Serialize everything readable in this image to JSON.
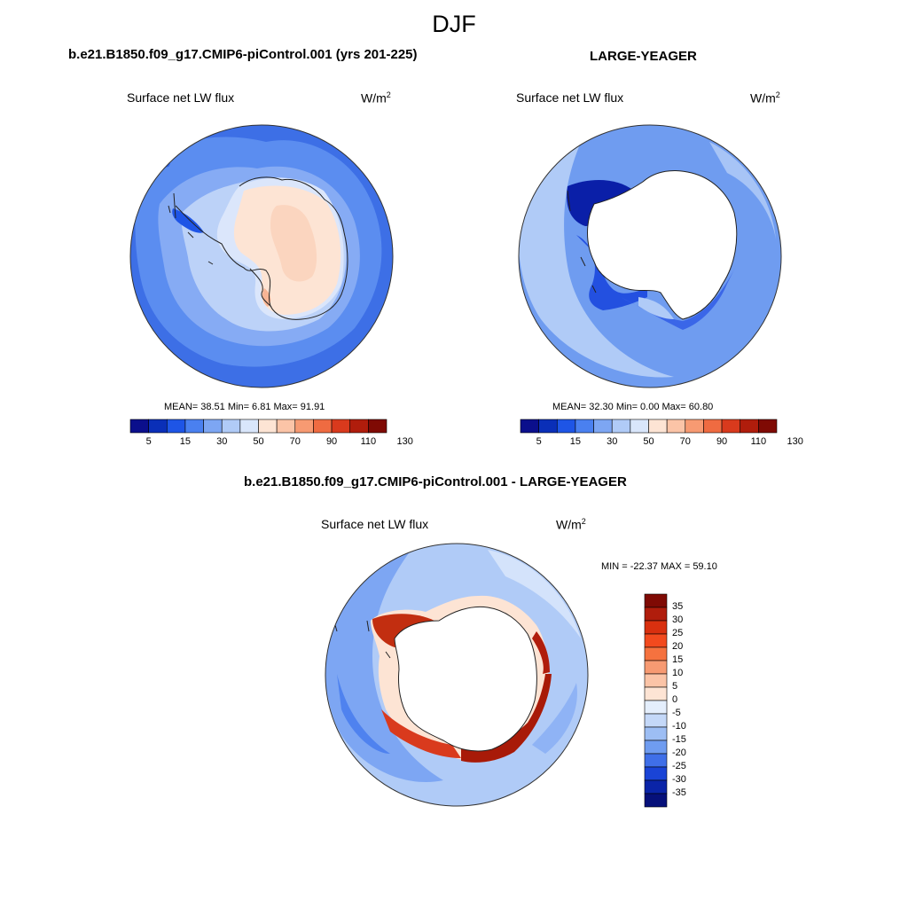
{
  "title": "DJF",
  "panels": {
    "control": {
      "title": "b.e21.B1850.f09_g17.CMIP6-piControl.001 (yrs 201-225)",
      "left_string": "Surface net LW flux",
      "units_base": "W/m",
      "units_exp": "2",
      "stats": "MEAN=  38.51  Min=   6.81  Max=  91.91"
    },
    "obs": {
      "title": "LARGE-YEAGER",
      "left_string": "Surface net LW flux",
      "units_base": "W/m",
      "units_exp": "2",
      "stats": "MEAN=  32.30  Min=   0.00  Max=  60.80"
    },
    "diff": {
      "title": "b.e21.B1850.f09_g17.CMIP6-piControl.001 - LARGE-YEAGER",
      "left_string": "Surface net LW flux",
      "units_base": "W/m",
      "units_exp": "2",
      "stats": "MIN = -22.37 MAX =  59.10"
    }
  },
  "chart_data": [
    {
      "type": "heatmap",
      "projection": "south-polar-stereographic",
      "name": "b.e21.B1850.f09_g17.CMIP6-piControl.001 (yrs 201-225)",
      "variable": "Surface net LW flux",
      "mean": 38.51,
      "min": 6.81,
      "max": 91.91,
      "colorbar_labels": [
        "5",
        "15",
        "30",
        "50",
        "70",
        "90",
        "110",
        "130"
      ],
      "colorbar_colors": [
        "#0b0f8c",
        "#0a2fb8",
        "#1e55e6",
        "#4a80f0",
        "#7da6f3",
        "#b0cbf7",
        "#d9e6fb",
        "#fde4d4",
        "#fbc4a7",
        "#f79a72",
        "#ef6b41",
        "#d93a1d",
        "#b01d0c",
        "#7f0a04"
      ]
    },
    {
      "type": "heatmap",
      "projection": "south-polar-stereographic",
      "name": "LARGE-YEAGER",
      "variable": "Surface net LW flux",
      "mean": 32.3,
      "min": 0.0,
      "max": 60.8,
      "colorbar_labels": [
        "5",
        "15",
        "30",
        "50",
        "70",
        "90",
        "110",
        "130"
      ],
      "colorbar_colors": [
        "#0b0f8c",
        "#0a2fb8",
        "#1e55e6",
        "#4a80f0",
        "#7da6f3",
        "#b0cbf7",
        "#d9e6fb",
        "#fde4d4",
        "#fbc4a7",
        "#f79a72",
        "#ef6b41",
        "#d93a1d",
        "#b01d0c",
        "#7f0a04"
      ]
    },
    {
      "type": "heatmap",
      "projection": "south-polar-stereographic",
      "name": "b.e21.B1850.f09_g17.CMIP6-piControl.001 - LARGE-YEAGER",
      "variable": "Surface net LW flux",
      "min": -22.37,
      "max": 59.1,
      "colorbar_labels": [
        "35",
        "30",
        "25",
        "20",
        "15",
        "10",
        "5",
        "0",
        "-5",
        "-10",
        "-15",
        "-20",
        "-25",
        "-30",
        "-35"
      ],
      "colorbar_colors": [
        "#7f0a04",
        "#b01d0c",
        "#d9300f",
        "#f24a1e",
        "#f5723f",
        "#f79a72",
        "#fbc4a7",
        "#fde4d4",
        "#e4eefc",
        "#c4d8f8",
        "#9dbef4",
        "#6f9cf0",
        "#3f6fe8",
        "#1a44d6",
        "#0a24a8",
        "#06107a"
      ]
    }
  ]
}
